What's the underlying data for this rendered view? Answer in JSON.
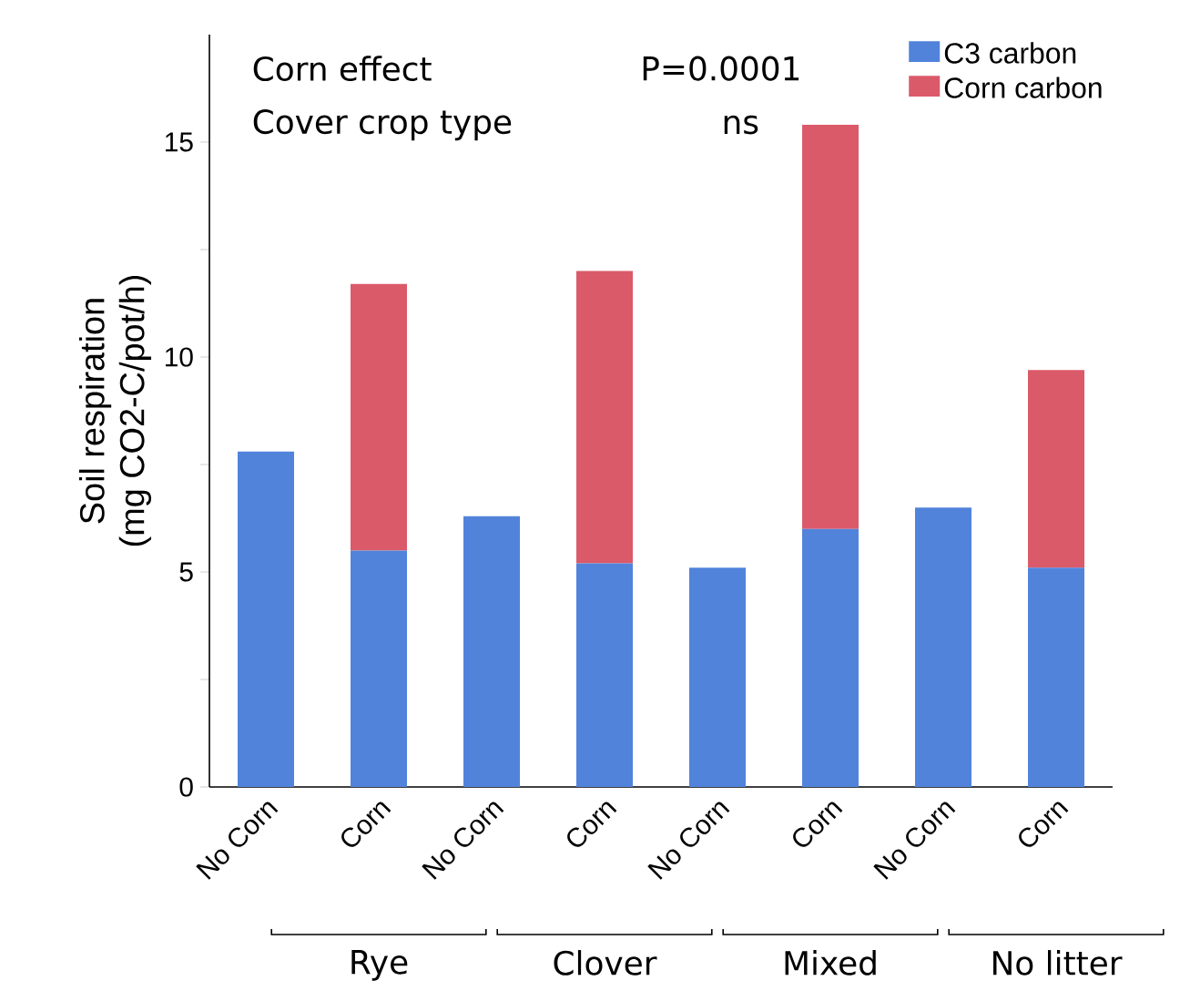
{
  "chart_data": {
    "type": "bar",
    "stacked": true,
    "ylabel": "Soil respiration\n(mg CO2-C/pot/h)",
    "categories": [
      "No Corn",
      "Corn",
      "No Corn",
      "Corn",
      "No Corn",
      "Corn",
      "No Corn",
      "Corn"
    ],
    "series": [
      {
        "name": "C3 carbon",
        "color": "#5183db",
        "values": [
          7.8,
          5.5,
          6.3,
          5.2,
          5.1,
          6.0,
          6.5,
          5.1
        ]
      },
      {
        "name": "Corn carbon",
        "color": "#db5a6a",
        "values": [
          0,
          6.2,
          0,
          6.8,
          0,
          9.4,
          0,
          4.6
        ]
      }
    ],
    "ylim": [
      0,
      17.5
    ],
    "yticks": [
      0,
      {
        "value": 2.5,
        "label": null
      },
      5,
      {
        "value": 7.5,
        "label": null
      },
      10,
      {
        "value": 12.5,
        "label": null
      },
      15
    ],
    "legend": "top right",
    "annotations": [
      "Corn effect",
      "P=0.0001",
      "Cover crop type",
      "ns",
      "Rye",
      "Clover",
      "Mixed",
      "No litter"
    ]
  }
}
